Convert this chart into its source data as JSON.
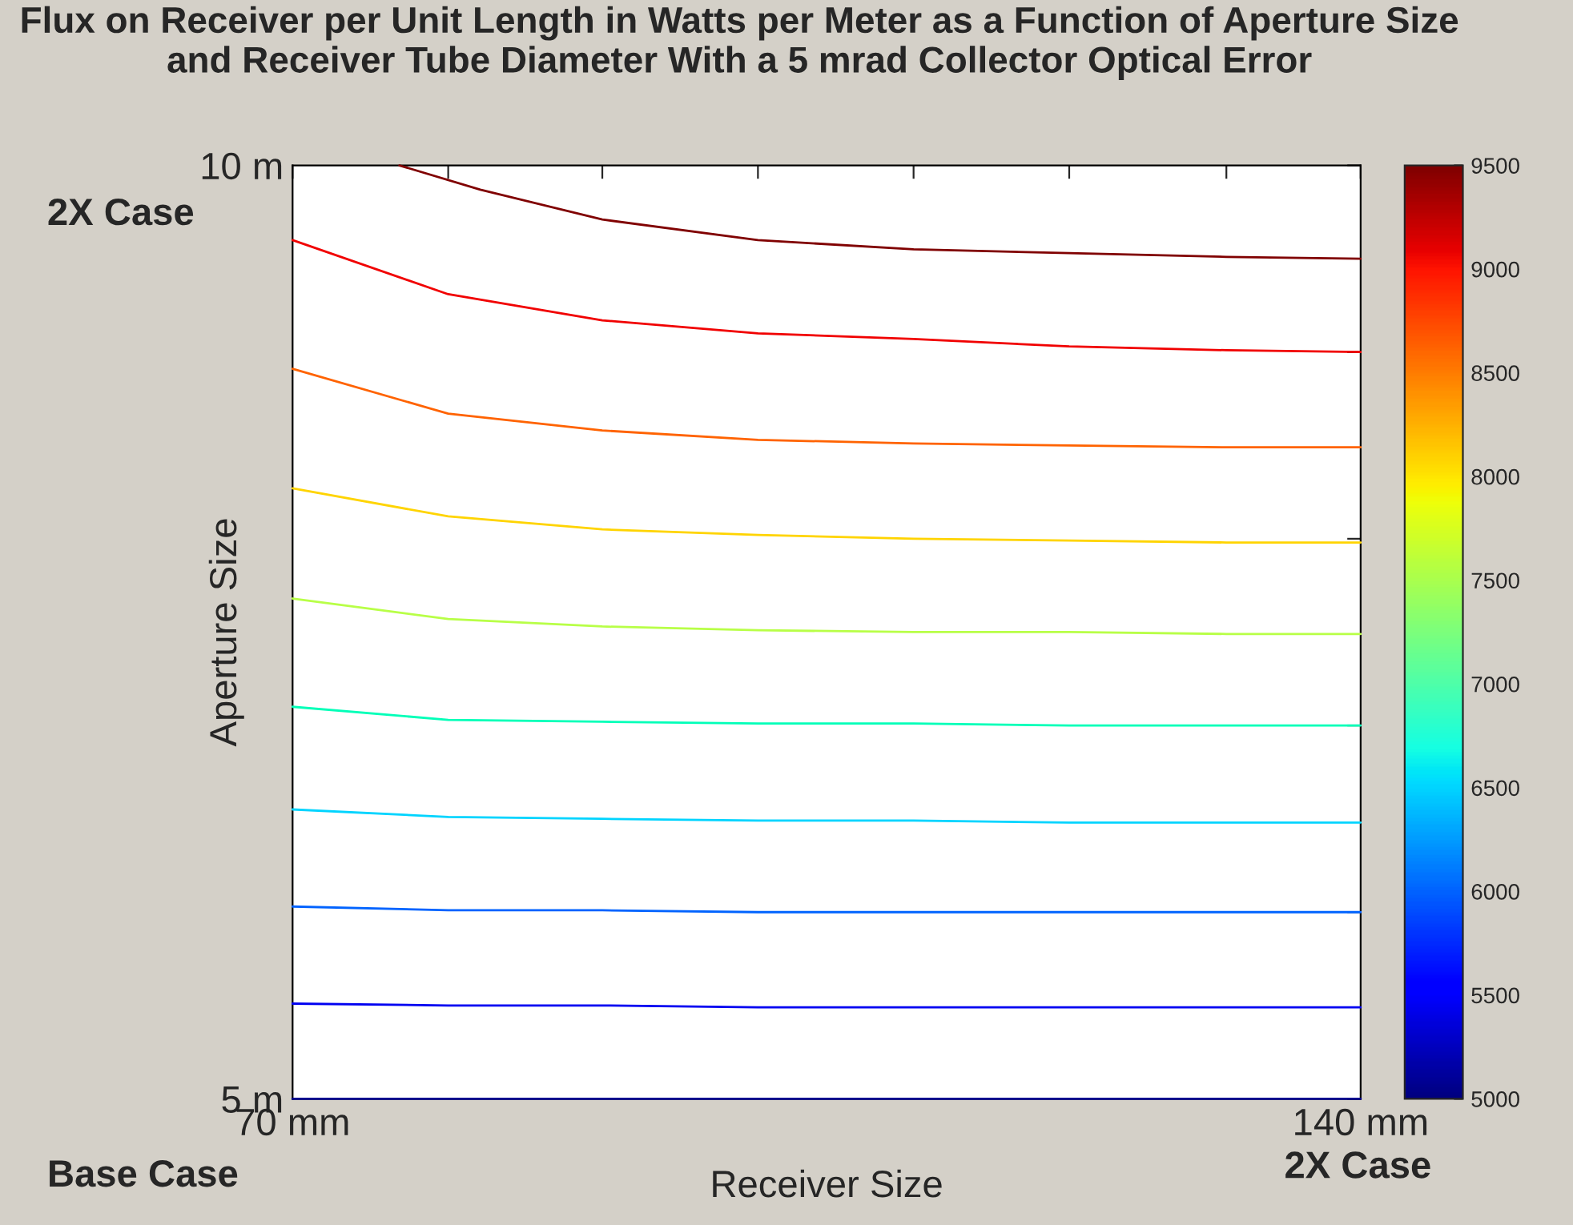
{
  "chart_data": {
    "type": "line",
    "title": "Flux on Receiver per Unit Length in Watts per Meter as a Function of Aperture Size and Receiver Tube Diameter With a 5 mrad Collector Optical Error",
    "xlabel": "Receiver Size",
    "ylabel": "Aperture Size",
    "annotations": [
      "2X Case",
      "Base Case",
      "2X Case"
    ],
    "x": [
      70,
      80.2,
      90.3,
      100.5,
      110.7,
      120.9,
      131.2,
      140
    ],
    "series": [
      {
        "color": "#00008f",
        "values": [
          5.0,
          5.0,
          5.0,
          5.0,
          5.0,
          5.0,
          5.0,
          5.0
        ]
      },
      {
        "color": "#0000f1",
        "values": [
          5.51,
          5.5,
          5.5,
          5.49,
          5.49,
          5.49,
          5.49,
          5.49
        ]
      },
      {
        "color": "#0063ff",
        "values": [
          6.03,
          6.01,
          6.01,
          6.0,
          6.0,
          6.0,
          6.0,
          6.0
        ]
      },
      {
        "color": "#00d4ff",
        "values": [
          6.55,
          6.51,
          6.5,
          6.49,
          6.49,
          6.48,
          6.48,
          6.48
        ]
      },
      {
        "color": "#00ffb8",
        "values": [
          7.1,
          7.03,
          7.02,
          7.01,
          7.01,
          7.0,
          7.0,
          7.0
        ]
      },
      {
        "color": "#b8ff47",
        "values": [
          7.68,
          7.57,
          7.53,
          7.51,
          7.5,
          7.5,
          7.49,
          7.49
        ]
      },
      {
        "color": "#ffd400",
        "values": [
          8.27,
          8.12,
          8.05,
          8.02,
          8.0,
          7.99,
          7.98,
          7.98
        ]
      },
      {
        "color": "#ff6300",
        "values": [
          8.91,
          8.67,
          8.58,
          8.53,
          8.51,
          8.5,
          8.49,
          8.49
        ]
      },
      {
        "color": "#f10000",
        "values": [
          9.6,
          9.31,
          9.17,
          9.1,
          9.07,
          9.03,
          9.01,
          9.0
        ]
      },
      {
        "color": "#800000",
        "x": [
          77.0,
          82.3,
          90.3,
          100.5,
          110.7,
          120.9,
          131.2,
          140
        ],
        "values": [
          10.0,
          9.87,
          9.71,
          9.6,
          9.55,
          9.53,
          9.51,
          9.5
        ]
      }
    ],
    "xlim": [
      70,
      140
    ],
    "xticks": [
      {
        "value": 70,
        "label": "70 mm"
      },
      {
        "value": 80.2,
        "label": null
      },
      {
        "value": 90.3,
        "label": null
      },
      {
        "value": 100.5,
        "label": null
      },
      {
        "value": 110.7,
        "label": null
      },
      {
        "value": 120.9,
        "label": null
      },
      {
        "value": 131.2,
        "label": null
      },
      {
        "value": 140,
        "label": "140 mm"
      }
    ],
    "ylim": [
      5,
      10
    ],
    "yticks": [
      {
        "value": 5,
        "label": "5 m"
      },
      {
        "value": 6,
        "label": null
      },
      {
        "value": 7,
        "label": null
      },
      {
        "value": 8,
        "label": null
      },
      {
        "value": 9,
        "label": null
      },
      {
        "value": 10,
        "label": "10 m"
      }
    ],
    "clim": [
      5000,
      9500
    ],
    "cticks": [
      5000,
      5500,
      6000,
      6500,
      7000,
      7500,
      8000,
      8500,
      9000,
      9500
    ],
    "line_style": "solid",
    "marker": "none",
    "grid": false,
    "legend": false
  }
}
